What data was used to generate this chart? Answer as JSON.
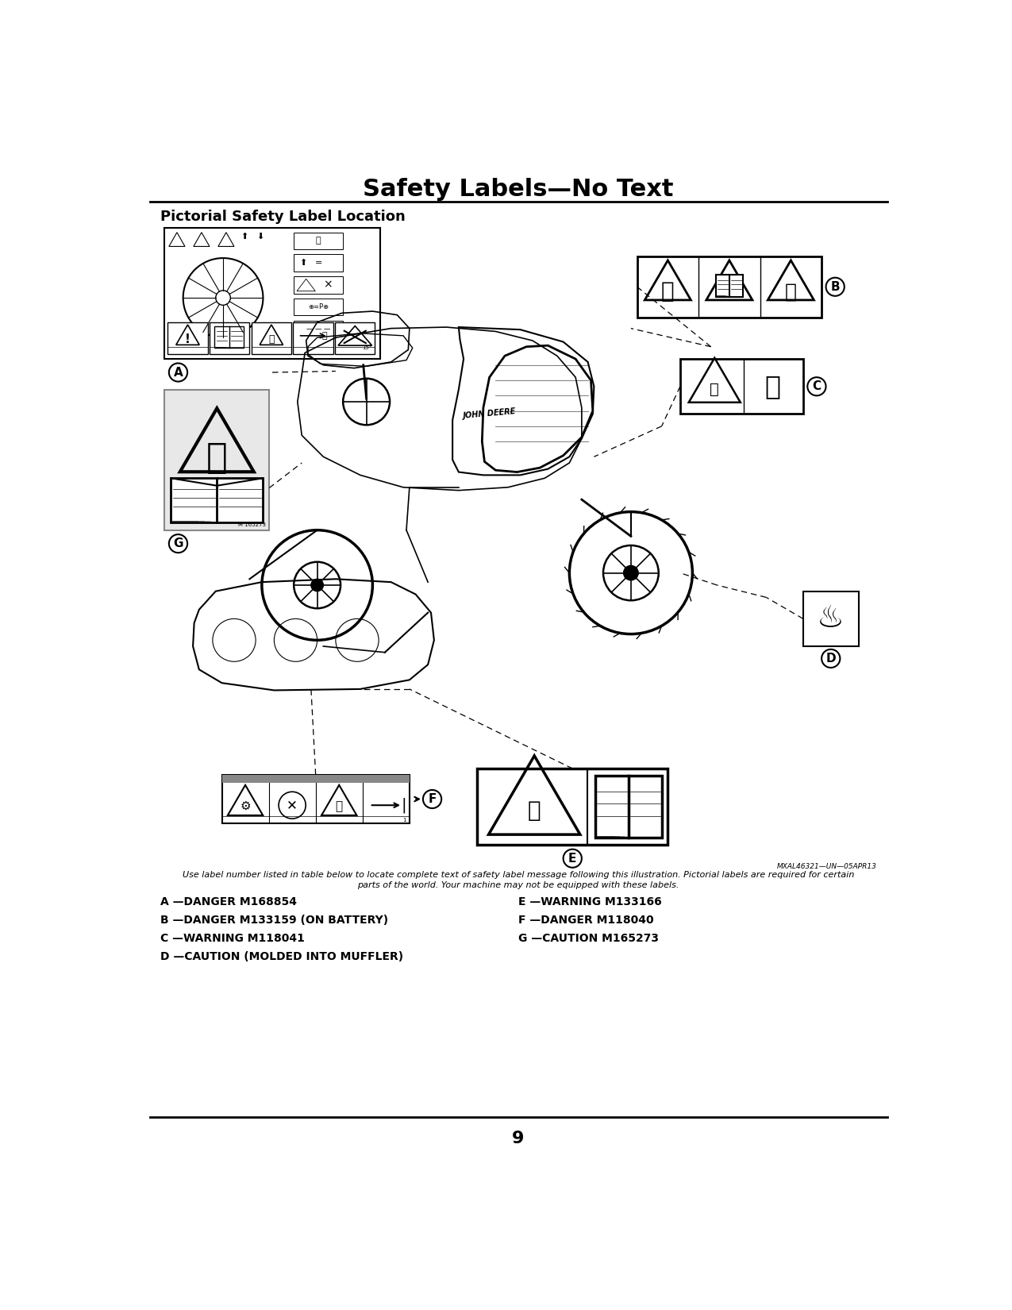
{
  "title": "Safety Labels—No Text",
  "subtitle": "Pictorial Safety Label Location",
  "page_number": "9",
  "image_credit": "MXAL46321—UN—05APR13",
  "caption_line1": "Use label number listed in table below to locate complete text of safety label message following this illustration. Pictorial labels are required for certain",
  "caption_line2": "parts of the world. Your machine may not be equipped with these labels.",
  "labels_left": [
    "A —DANGER M168854",
    "B —DANGER M133159 (ON BATTERY)",
    "C —WARNING M118041",
    "D —CAUTION (MOLDED INTO MUFFLER)"
  ],
  "labels_right": [
    "E —WARNING M133166",
    "F —DANGER M118040",
    "G —CAUTION M165273"
  ],
  "bg_color": "#ffffff",
  "text_color": "#000000",
  "title_fontsize": 22,
  "subtitle_fontsize": 13,
  "label_fontsize": 10,
  "caption_fontsize": 8,
  "page_num_fontsize": 16
}
